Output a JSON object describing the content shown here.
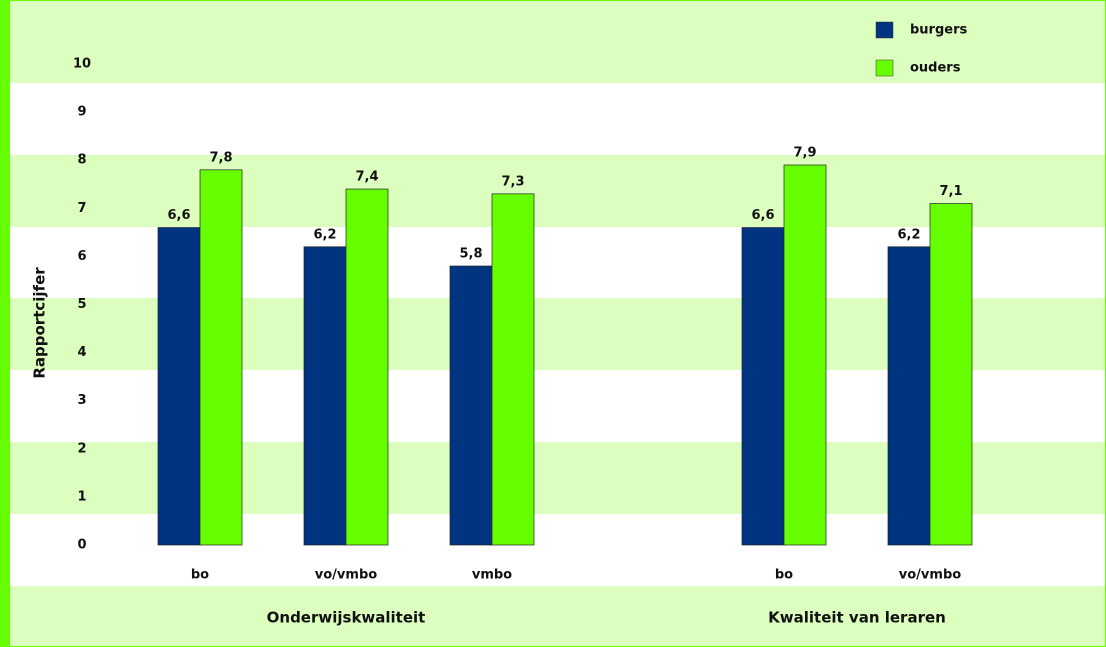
{
  "chart_data": {
    "type": "bar",
    "y_label": "Rapportcijfer",
    "groups": [
      {
        "name": "Onderwijskwaliteit",
        "categories": [
          "bo",
          "vo/vmbo",
          "vmbo"
        ]
      },
      {
        "name": "Kwaliteit van leraren",
        "categories": [
          "bo",
          "vo/vmbo"
        ]
      }
    ],
    "series": [
      {
        "name": "burgers",
        "color": "#003380",
        "values": [
          6.6,
          6.2,
          5.8,
          6.6,
          6.2
        ],
        "value_labels": [
          "6,6",
          "6,2",
          "5,8",
          "6,6",
          "6,2"
        ]
      },
      {
        "name": "ouders",
        "color": "#66ff00",
        "values": [
          7.8,
          7.4,
          7.3,
          7.9,
          7.1
        ],
        "value_labels": [
          "7,8",
          "7,4",
          "7,3",
          "7,9",
          "7,1"
        ]
      }
    ],
    "ylim": [
      0,
      10
    ],
    "yticks": [
      0,
      1,
      2,
      3,
      4,
      5,
      6,
      7,
      8,
      9,
      10
    ]
  }
}
